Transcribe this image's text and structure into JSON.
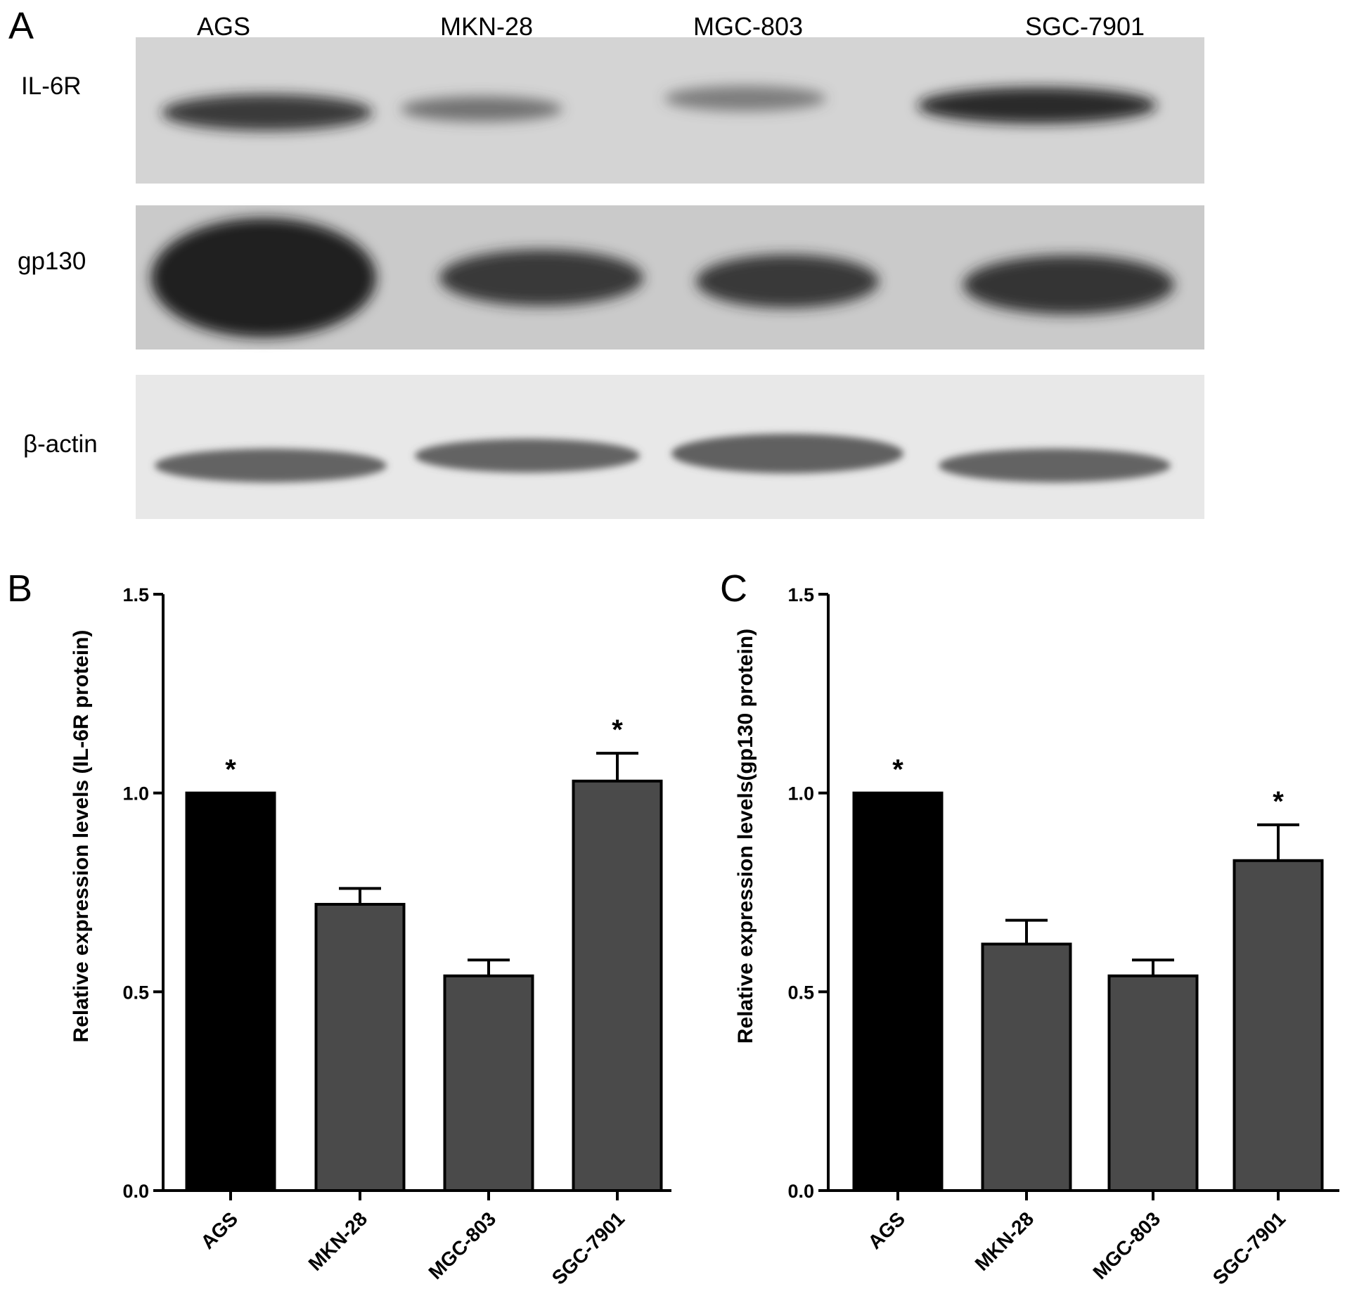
{
  "panel_a": {
    "letter": "A",
    "lanes": [
      "AGS",
      "MKN-28",
      "MGC-803",
      "SGC-7901"
    ],
    "rows": [
      "IL-6R",
      "gp130",
      "β-actin"
    ],
    "band_intensity": {
      "IL-6R": [
        0.75,
        0.35,
        0.3,
        0.85
      ],
      "gp130": [
        1.0,
        0.75,
        0.8,
        0.8
      ],
      "β-actin": [
        0.6,
        0.6,
        0.6,
        0.6
      ]
    }
  },
  "chart_data": [
    {
      "panel": "B",
      "type": "bar",
      "categories": [
        "AGS",
        "MKN-28",
        "MGC-803",
        "SGC-7901"
      ],
      "values": [
        1.0,
        0.72,
        0.54,
        1.03
      ],
      "errors": [
        0.0,
        0.04,
        0.04,
        0.07
      ],
      "significance": [
        "*",
        "",
        "",
        "*"
      ],
      "colors": [
        "#000000",
        "#4a4a4a",
        "#4a4a4a",
        "#4a4a4a"
      ],
      "ylabel": "Relative expression levels  (IL-6R protein)",
      "ylim": [
        0,
        1.5
      ],
      "yticks": [
        "0.0",
        "0.5",
        "1.0",
        "1.5"
      ]
    },
    {
      "panel": "C",
      "type": "bar",
      "categories": [
        "AGS",
        "MKN-28",
        "MGC-803",
        "SGC-7901"
      ],
      "values": [
        1.0,
        0.62,
        0.54,
        0.83
      ],
      "errors": [
        0.0,
        0.06,
        0.04,
        0.09
      ],
      "significance": [
        "*",
        "",
        "",
        "*"
      ],
      "colors": [
        "#000000",
        "#4a4a4a",
        "#4a4a4a",
        "#4a4a4a"
      ],
      "ylabel": "Relative expression levels(gp130 protein)",
      "ylim": [
        0,
        1.5
      ],
      "yticks": [
        "0.0",
        "0.5",
        "1.0",
        "1.5"
      ]
    }
  ]
}
